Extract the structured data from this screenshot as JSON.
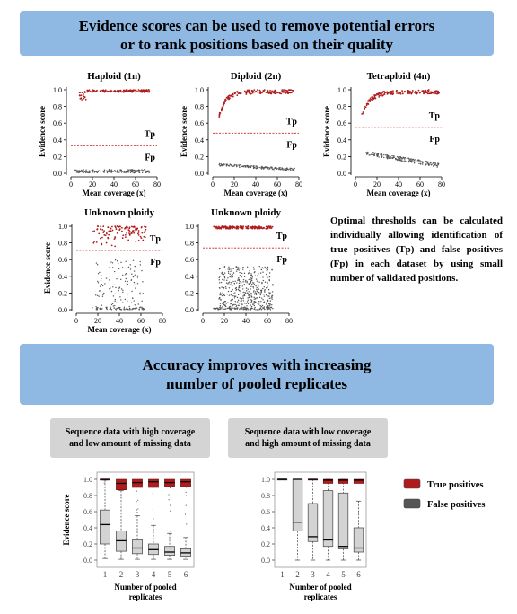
{
  "banners": {
    "top_line1": "Evidence scores can be used to remove potential errors",
    "top_line2": "or to rank positions based on their quality",
    "bottom_line1": "Accuracy improves with increasing",
    "bottom_line2": "number of pooled replicates"
  },
  "note": "Optimal thresholds can be calculated individually allowing identification of true positives (Tp) and false positives (Fp) in each dataset by using small number of validated positions.",
  "colors": {
    "true_positive": "#b01c1c",
    "false_positive": "#555555",
    "threshold": "#cc2222",
    "box_fill": "#d3d3d3"
  },
  "scatter_panels": [
    {
      "title": "Haploid (1n)",
      "threshold": 0.33,
      "xlabel": "Mean coverage (x)",
      "ylabel": "Evidence score",
      "xticks": [
        "0",
        "20",
        "40",
        "60",
        "80"
      ],
      "yticks": [
        "0.0",
        "0.2",
        "0.4",
        "0.6",
        "0.8",
        "1.0"
      ],
      "tp_label": "Tp",
      "fp_label": "Fp"
    },
    {
      "title": "Diploid (2n)",
      "threshold": 0.48,
      "xlabel": "Mean coverage (x)",
      "ylabel": "Evidence score",
      "xticks": [
        "0",
        "20",
        "40",
        "60",
        "80"
      ],
      "yticks": [
        "0.0",
        "0.2",
        "0.4",
        "0.6",
        "0.8",
        "1.0"
      ],
      "tp_label": "Tp",
      "fp_label": "Fp"
    },
    {
      "title": "Tetraploid (4n)",
      "threshold": 0.55,
      "xlabel": "Mean coverage (x)",
      "ylabel": "Evidence score",
      "xticks": [
        "0",
        "20",
        "40",
        "60",
        "80"
      ],
      "yticks": [
        "0.0",
        "0.2",
        "0.4",
        "0.6",
        "0.8",
        "1.0"
      ],
      "tp_label": "Tp",
      "fp_label": "Fp"
    },
    {
      "title": "Unknown ploidy",
      "threshold": 0.71,
      "xlabel": "Mean coverage (x)",
      "ylabel": "Evidence score",
      "xticks": [
        "0",
        "20",
        "40",
        "60",
        "80"
      ],
      "yticks": [
        "0.0",
        "0.2",
        "0.4",
        "0.6",
        "0.8",
        "1.0"
      ],
      "tp_label": "Tp",
      "fp_label": "Fp"
    },
    {
      "title": "Unknown ploidy",
      "threshold": 0.74,
      "xlabel": "",
      "ylabel": "",
      "xticks": [
        "0",
        "20",
        "40",
        "60",
        "80"
      ],
      "yticks": [
        "0.0",
        "0.2",
        "0.4",
        "0.6",
        "0.8",
        "1.0"
      ],
      "tp_label": "Tp",
      "fp_label": "Fp"
    }
  ],
  "box_panels": [
    {
      "caption_line1": "Sequence data with high coverage",
      "caption_line2": "and low amount of missing data",
      "ylabel": "Evidence score",
      "xlabel_line1": "Number of pooled",
      "xlabel_line2": "replicates",
      "categories": [
        "1",
        "2",
        "3",
        "4",
        "5",
        "6"
      ],
      "yticks": [
        "0.0",
        "0.2",
        "0.4",
        "0.6",
        "0.8",
        "1.0"
      ],
      "tp": [
        {
          "q1": 0.99,
          "med": 1.0,
          "q3": 1.0
        },
        {
          "q1": 0.87,
          "med": 0.95,
          "q3": 1.0
        },
        {
          "q1": 0.9,
          "med": 0.96,
          "q3": 1.0
        },
        {
          "q1": 0.9,
          "med": 0.97,
          "q3": 1.0
        },
        {
          "q1": 0.91,
          "med": 0.96,
          "q3": 1.0
        },
        {
          "q1": 0.91,
          "med": 0.97,
          "q3": 1.0
        }
      ],
      "fp": [
        {
          "lo": 0.02,
          "q1": 0.2,
          "med": 0.44,
          "q3": 0.62,
          "hi": 0.99
        },
        {
          "lo": 0.01,
          "q1": 0.11,
          "med": 0.24,
          "q3": 0.36,
          "hi": 0.86
        },
        {
          "lo": 0.01,
          "q1": 0.08,
          "med": 0.15,
          "q3": 0.25,
          "hi": 0.55
        },
        {
          "lo": 0.01,
          "q1": 0.07,
          "med": 0.13,
          "q3": 0.2,
          "hi": 0.43
        },
        {
          "lo": 0.01,
          "q1": 0.06,
          "med": 0.1,
          "q3": 0.17,
          "hi": 0.33
        },
        {
          "lo": 0.01,
          "q1": 0.05,
          "med": 0.09,
          "q3": 0.14,
          "hi": 0.28
        }
      ]
    },
    {
      "caption_line1": "Sequence data with low coverage",
      "caption_line2": "and high amount of missing data",
      "ylabel": "",
      "xlabel_line1": "Number of pooled",
      "xlabel_line2": "replicates",
      "categories": [
        "1",
        "2",
        "3",
        "4",
        "5",
        "6"
      ],
      "yticks": [
        "0.0",
        "0.2",
        "0.4",
        "0.6",
        "0.8",
        "1.0"
      ],
      "tp": [
        {
          "q1": 1.0,
          "med": 1.0,
          "q3": 1.0
        },
        {
          "q1": 1.0,
          "med": 1.0,
          "q3": 1.0
        },
        {
          "q1": 0.99,
          "med": 1.0,
          "q3": 1.0
        },
        {
          "q1": 0.95,
          "med": 0.99,
          "q3": 1.0
        },
        {
          "q1": 0.95,
          "med": 0.99,
          "q3": 1.0
        },
        {
          "q1": 0.95,
          "med": 0.99,
          "q3": 1.0
        }
      ],
      "fp": [
        {
          "lo": 1.0,
          "q1": 1.0,
          "med": 1.0,
          "q3": 1.0,
          "hi": 1.0
        },
        {
          "lo": 0.0,
          "q1": 0.36,
          "med": 0.47,
          "q3": 1.0,
          "hi": 1.0
        },
        {
          "lo": 0.0,
          "q1": 0.23,
          "med": 0.29,
          "q3": 0.7,
          "hi": 1.0
        },
        {
          "lo": 0.0,
          "q1": 0.17,
          "med": 0.25,
          "q3": 0.86,
          "hi": 1.0
        },
        {
          "lo": 0.0,
          "q1": 0.14,
          "med": 0.17,
          "q3": 0.83,
          "hi": 1.0
        },
        {
          "lo": 0.0,
          "q1": 0.1,
          "med": 0.15,
          "q3": 0.4,
          "hi": 0.73
        }
      ]
    }
  ],
  "legend": {
    "tp_label": "True positives",
    "fp_label": "False positives"
  }
}
